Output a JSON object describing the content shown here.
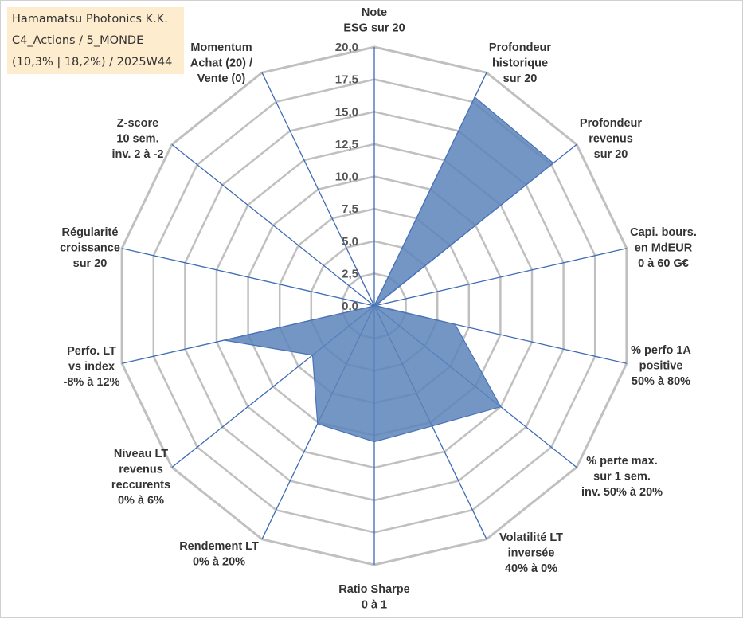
{
  "title": {
    "line1": "Hamamatsu Photonics K.K.",
    "line2": "C4_Actions / 5_MONDE",
    "line3": "(10,3% | 18,2%) / 2025W44"
  },
  "colors": {
    "fill": "#5b84bb",
    "line": "#4a72b8",
    "spoke": "#3d6bb3",
    "grid": "#c0c0c0",
    "title_bg": "#fdeccd"
  },
  "chart_data": {
    "type": "radar",
    "rmax": 20,
    "ticks": [
      "0,0",
      "2,5",
      "5,0",
      "7,5",
      "10,0",
      "12,5",
      "15,0",
      "17,5",
      "20,0"
    ],
    "axes": [
      {
        "lines": [
          "Note",
          "ESG sur 20"
        ]
      },
      {
        "lines": [
          "Profondeur",
          "historique",
          "sur 20"
        ]
      },
      {
        "lines": [
          "Profondeur",
          "revenus",
          "sur 20"
        ]
      },
      {
        "lines": [
          "Capi. bours.",
          "en MdEUR",
          "0 à 60 G€"
        ]
      },
      {
        "lines": [
          "% perfo 1A",
          "positive",
          "50% à 80%"
        ]
      },
      {
        "lines": [
          "% perte max.",
          "sur 1 sem.",
          "inv. 50% à 20%"
        ]
      },
      {
        "lines": [
          "Volatilité LT",
          "inversée",
          "40% à 0%"
        ]
      },
      {
        "lines": [
          "Ratio Sharpe",
          "0 à 1"
        ]
      },
      {
        "lines": [
          "Rendement LT",
          "0% à 20%"
        ]
      },
      {
        "lines": [
          "Niveau LT",
          "revenus",
          "reccurents",
          "0% à 6%"
        ]
      },
      {
        "lines": [
          "Perfo. LT",
          "vs index",
          "-8% à 12%"
        ]
      },
      {
        "lines": [
          "Régularité",
          "croissance",
          "sur 20"
        ]
      },
      {
        "lines": [
          "Z-score",
          "10 sem.",
          "inv. 2 à -2"
        ]
      },
      {
        "lines": [
          "Momentum",
          "Achat (20) /",
          "Vente (0)"
        ]
      }
    ],
    "values": [
      0,
      17.9,
      17.7,
      0.1,
      6.4,
      12.5,
      10.3,
      10.5,
      10.1,
      6.1,
      11.9,
      0,
      0,
      4.7
    ]
  }
}
